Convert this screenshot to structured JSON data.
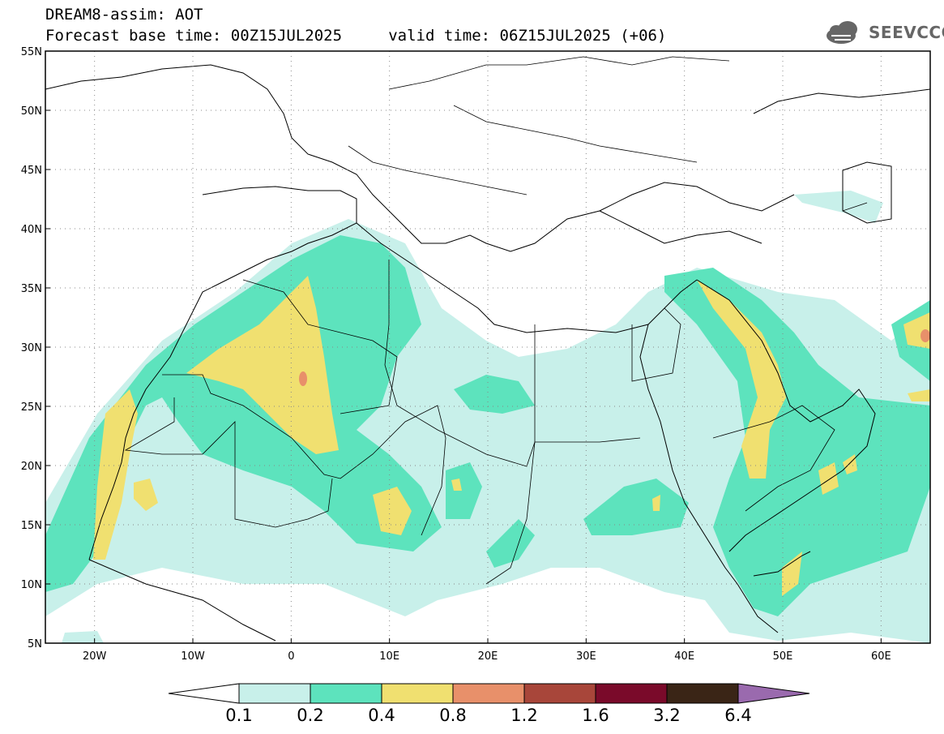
{
  "title": {
    "line1": "DREAM8-assim: AOT",
    "line2": "Forecast base time: 00Z15JUL2025     valid time: 06Z15JUL2025 (+06)"
  },
  "logo": {
    "text": "SEEVCCC",
    "icon": "cloud-icon"
  },
  "map": {
    "lon_range": [
      -25,
      65
    ],
    "lat_range": [
      5,
      55
    ],
    "lat_ticks": [
      {
        "value": 55,
        "label": "55N"
      },
      {
        "value": 50,
        "label": "50N"
      },
      {
        "value": 45,
        "label": "45N"
      },
      {
        "value": 40,
        "label": "40N"
      },
      {
        "value": 35,
        "label": "35N"
      },
      {
        "value": 30,
        "label": "30N"
      },
      {
        "value": 25,
        "label": "25N"
      },
      {
        "value": 20,
        "label": "20N"
      },
      {
        "value": 15,
        "label": "15N"
      },
      {
        "value": 10,
        "label": "10N"
      },
      {
        "value": 5,
        "label": "5N"
      }
    ],
    "lon_ticks": [
      {
        "value": -20,
        "label": "20W"
      },
      {
        "value": -10,
        "label": "10W"
      },
      {
        "value": 0,
        "label": "0"
      },
      {
        "value": 10,
        "label": "10E"
      },
      {
        "value": 20,
        "label": "20E"
      },
      {
        "value": 30,
        "label": "30E"
      },
      {
        "value": 40,
        "label": "40E"
      },
      {
        "value": 50,
        "label": "50E"
      },
      {
        "value": 60,
        "label": "60E"
      }
    ],
    "grid": "dotted"
  },
  "colorbar": {
    "levels": [
      "0.1",
      "0.2",
      "0.4",
      "0.8",
      "1.2",
      "1.6",
      "3.2",
      "6.4"
    ],
    "colors": [
      "#c8f0ea",
      "#5de3bd",
      "#f0e070",
      "#e8906a",
      "#a8463a",
      "#7a0a2a",
      "#3a2516",
      "#9a6aae"
    ],
    "under_color": "#ffffff"
  }
}
